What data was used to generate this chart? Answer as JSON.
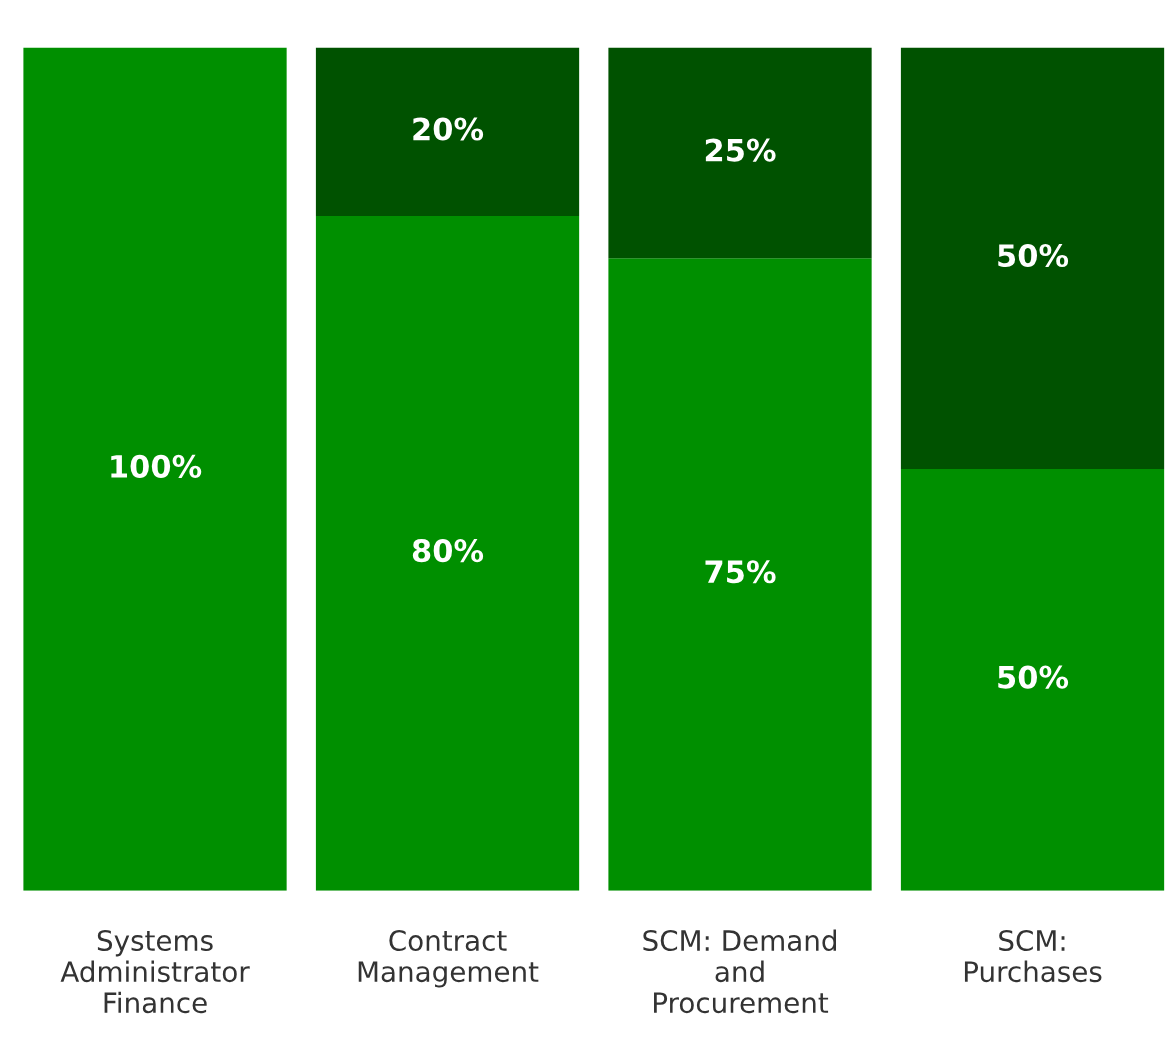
{
  "chart_data": {
    "type": "bar",
    "stacked": true,
    "legend": false,
    "grid": false,
    "categories": [
      "Systems\nAdministrator\nFinance",
      "Contract\nManagement",
      "SCM: Demand\nand\nProcurement",
      "SCM:\nPurchases"
    ],
    "series": [
      {
        "color": "#008f00",
        "values": [
          100,
          80,
          75,
          50
        ],
        "value_labels": [
          "100%",
          "80%",
          "75%",
          "50%"
        ]
      },
      {
        "color": "#005200",
        "values": [
          0,
          20,
          25,
          50
        ],
        "value_labels": [
          null,
          "20%",
          "25%",
          "50%"
        ]
      }
    ]
  }
}
